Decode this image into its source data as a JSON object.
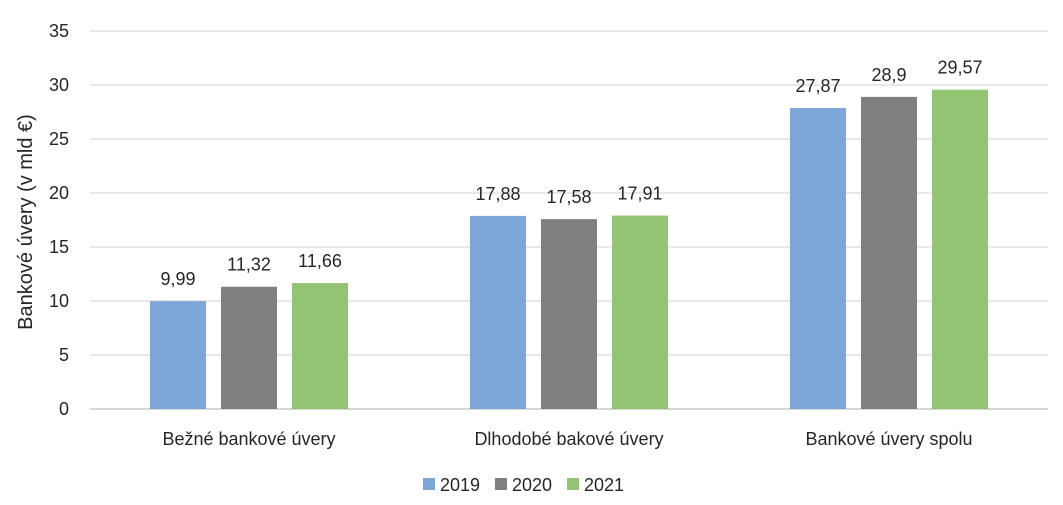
{
  "chart_data": {
    "type": "bar",
    "categories": [
      "Bežné bankové úvery",
      "Dlhodobé bakové úvery",
      "Bankové úvery spolu"
    ],
    "series": [
      {
        "name": "2019",
        "values": [
          9.99,
          17.88,
          27.87
        ],
        "labels": [
          "9,99",
          "17,88",
          "27,87"
        ],
        "color": "#7fa6d8"
      },
      {
        "name": "2020",
        "values": [
          11.32,
          17.58,
          28.9
        ],
        "labels": [
          "11,32",
          "17,58",
          "28,9"
        ],
        "color": "#7f7f7f"
      },
      {
        "name": "2021",
        "values": [
          11.66,
          17.91,
          29.57
        ],
        "labels": [
          "11,66",
          "17,91",
          "29,57"
        ],
        "color": "#93c473"
      }
    ],
    "ylabel": "Bankové úvery  (v mld €)",
    "ylim": [
      0,
      35
    ],
    "yticks": [
      "0",
      "5",
      "10",
      "15",
      "20",
      "25",
      "30",
      "35"
    ],
    "grid": true,
    "legend_position": "bottom"
  }
}
